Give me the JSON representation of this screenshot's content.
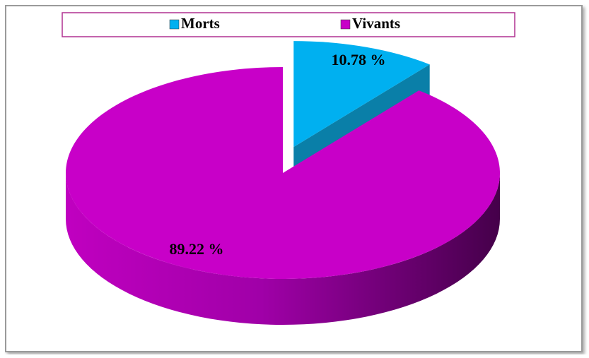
{
  "chart_data": {
    "type": "pie",
    "categories": [
      "Morts",
      "Vivants"
    ],
    "values": [
      10.78,
      89.22
    ],
    "value_labels": [
      "10.78 %",
      "89.22 %"
    ],
    "colors": [
      "#00b0f0",
      "#c800c8"
    ]
  }
}
